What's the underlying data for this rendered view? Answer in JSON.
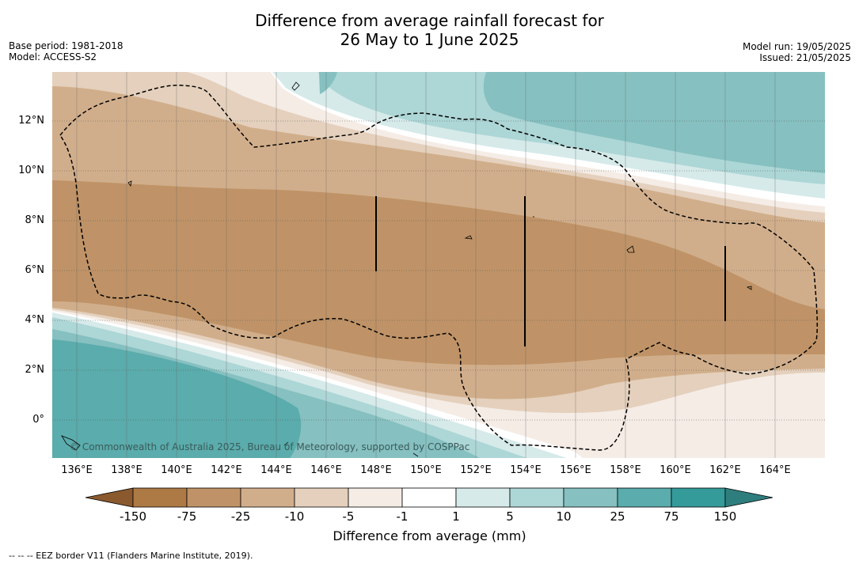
{
  "title_line1": "Difference from average rainfall forecast for",
  "title_line2": "26 May to 1 June 2025",
  "base_period": "Base period: 1981-2018",
  "model": "Model: ACCESS-S2",
  "model_run": "Model run: 19/05/2025",
  "issued": "Issued: 21/05/2025",
  "copyright": "© Commonwealth of Australia 2025, Bureau of Meteorology, supported by COSPPac",
  "lat_labels": [
    "12°N",
    "10°N",
    "8°N",
    "6°N",
    "4°N",
    "2°N",
    "0°"
  ],
  "lon_labels": [
    "136°E",
    "138°E",
    "140°E",
    "142°E",
    "144°E",
    "146°E",
    "148°E",
    "150°E",
    "152°E",
    "154°E",
    "156°E",
    "158°E",
    "160°E",
    "162°E",
    "164°E"
  ],
  "colorbar": {
    "label": "Difference from average (mm)",
    "ticks": [
      "-150",
      "-75",
      "-25",
      "-10",
      "-5",
      "-1",
      "1",
      "5",
      "10",
      "25",
      "75",
      "150"
    ],
    "colors": [
      "#ad7a45",
      "#bf9367",
      "#d1ae8b",
      "#e4d0bc",
      "#f5ece6",
      "#ffffff",
      "#d6eaea",
      "#add6d6",
      "#86c0c0",
      "#5bacac",
      "#359a9a",
      "#2f7e7e",
      "#8a5a2e"
    ]
  },
  "footnote": "--  --  -- EEZ border V11 (Flanders Marine Institute, 2019)."
}
